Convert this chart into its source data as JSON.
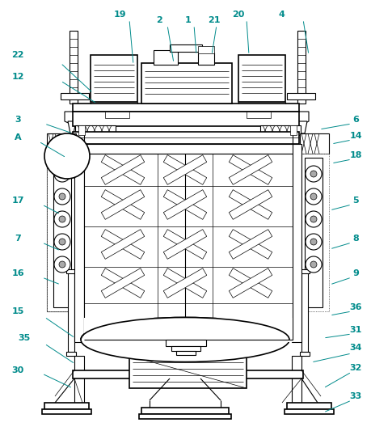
{
  "bg_color": "#ffffff",
  "line_color": "#000000",
  "teal": "#008b8b",
  "figsize": [
    4.59,
    5.28
  ],
  "dpi": 100,
  "labels": [
    [
      "22",
      22,
      68,
      75,
      78,
      115,
      115
    ],
    [
      "12",
      22,
      95,
      75,
      100,
      120,
      128
    ],
    [
      "19",
      148,
      18,
      160,
      24,
      165,
      80
    ],
    [
      "2",
      197,
      25,
      207,
      31,
      215,
      78
    ],
    [
      "1",
      233,
      25,
      240,
      31,
      243,
      68
    ],
    [
      "21",
      265,
      25,
      268,
      31,
      262,
      68
    ],
    [
      "20",
      295,
      18,
      305,
      24,
      308,
      68
    ],
    [
      "4",
      348,
      18,
      375,
      24,
      382,
      68
    ],
    [
      "3",
      22,
      148,
      55,
      153,
      90,
      165
    ],
    [
      "A",
      22,
      170,
      48,
      175,
      82,
      195
    ],
    [
      "6",
      440,
      148,
      435,
      153,
      395,
      160
    ],
    [
      "14",
      440,
      168,
      435,
      173,
      410,
      178
    ],
    [
      "18",
      440,
      192,
      435,
      197,
      410,
      202
    ],
    [
      "17",
      22,
      248,
      52,
      253,
      75,
      265
    ],
    [
      "7",
      22,
      295,
      52,
      300,
      75,
      310
    ],
    [
      "16",
      22,
      338,
      52,
      343,
      75,
      352
    ],
    [
      "5",
      440,
      248,
      435,
      253,
      408,
      260
    ],
    [
      "8",
      440,
      295,
      435,
      300,
      408,
      308
    ],
    [
      "9",
      440,
      338,
      435,
      343,
      408,
      352
    ],
    [
      "15",
      22,
      385,
      55,
      392,
      93,
      418
    ],
    [
      "36",
      440,
      380,
      435,
      385,
      408,
      390
    ],
    [
      "31",
      440,
      408,
      435,
      413,
      400,
      418
    ],
    [
      "35",
      30,
      418,
      55,
      425,
      93,
      450
    ],
    [
      "34",
      440,
      430,
      435,
      437,
      385,
      448
    ],
    [
      "30",
      22,
      458,
      52,
      462,
      90,
      480
    ],
    [
      "32",
      440,
      455,
      435,
      460,
      400,
      480
    ],
    [
      "33",
      440,
      490,
      435,
      495,
      400,
      510
    ]
  ]
}
